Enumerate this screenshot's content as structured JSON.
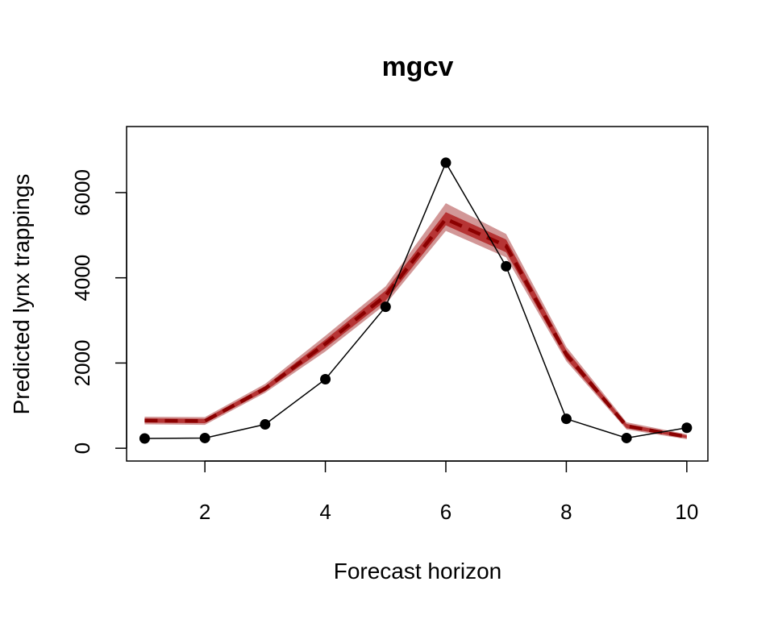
{
  "chart_data": {
    "type": "line",
    "title": "mgcv",
    "xlabel": "Forecast horizon",
    "ylabel": "Predicted lynx trappings",
    "xlim": [
      0.7,
      10.35
    ],
    "ylim": [
      -300,
      7550
    ],
    "x_ticks": [
      2,
      4,
      6,
      8,
      10
    ],
    "y_ticks": [
      0,
      2000,
      4000,
      6000
    ],
    "grid": false,
    "legend": "none",
    "series": [
      {
        "role": "forecast-median",
        "style": "dashed",
        "color": "#8b0000",
        "x": [
          1,
          2,
          3,
          4,
          5,
          6,
          7,
          8,
          9,
          10
        ],
        "values": [
          650,
          640,
          1400,
          2450,
          3580,
          5380,
          4750,
          2200,
          520,
          270
        ]
      },
      {
        "role": "forecast-inner-interval",
        "color": "#b22222",
        "x": [
          1,
          2,
          3,
          4,
          5,
          6,
          7,
          8,
          9,
          10
        ],
        "lower": [
          600,
          590,
          1340,
          2350,
          3460,
          5230,
          4600,
          2100,
          470,
          240
        ],
        "upper": [
          700,
          690,
          1460,
          2550,
          3700,
          5540,
          4900,
          2300,
          570,
          300
        ]
      },
      {
        "role": "forecast-outer-interval",
        "color": "#cd8c8c",
        "x": [
          1,
          2,
          3,
          4,
          5,
          6,
          7,
          8,
          9,
          10
        ],
        "lower": [
          560,
          550,
          1300,
          2270,
          3380,
          5100,
          4480,
          2040,
          440,
          210
        ],
        "upper": [
          740,
          730,
          1510,
          2640,
          3800,
          5750,
          5030,
          2380,
          610,
          330
        ]
      },
      {
        "role": "observed",
        "style": "solid-with-points",
        "color": "#000000",
        "x": [
          1,
          2,
          3,
          4,
          5,
          6,
          7,
          8,
          9,
          10
        ],
        "values": [
          230,
          240,
          560,
          1620,
          3320,
          6700,
          4270,
          690,
          240,
          480
        ]
      }
    ]
  }
}
